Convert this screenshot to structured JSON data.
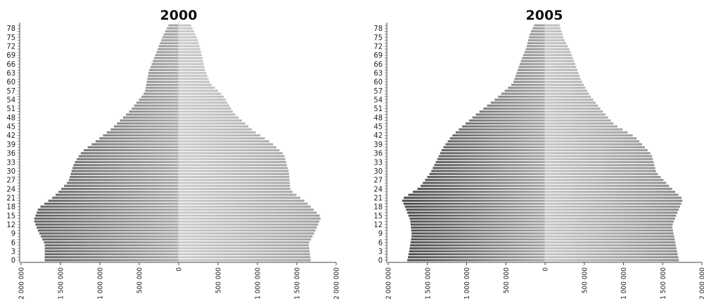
{
  "chart_data": [
    {
      "type": "bar",
      "title": "2000",
      "age_tick_labels": [
        "0",
        "3",
        "6",
        "9",
        "12",
        "15",
        "18",
        "21",
        "24",
        "27",
        "30",
        "33",
        "36",
        "39",
        "42",
        "45",
        "48",
        "51",
        "54",
        "57",
        "60",
        "63",
        "66",
        "69",
        "72",
        "75",
        "78"
      ],
      "x_tick_labels": [
        "2 000 000",
        "1 500 000",
        "1 000 000",
        "500 000",
        "0",
        "500 000",
        "1 000 000",
        "1 500 000",
        "2 000 000"
      ],
      "xlim": [
        -2000000,
        2000000
      ],
      "ages": [
        0,
        80
      ],
      "series": [
        {
          "side": "left",
          "values": [
            [
              0,
              1700000
            ],
            [
              6,
              1700000
            ],
            [
              10,
              1780000
            ],
            [
              14,
              1840000
            ],
            [
              18,
              1780000
            ],
            [
              22,
              1580000
            ],
            [
              27,
              1400000
            ],
            [
              33,
              1330000
            ],
            [
              37,
              1230000
            ],
            [
              41,
              1030000
            ],
            [
              45,
              840000
            ],
            [
              51,
              610000
            ],
            [
              57,
              430000
            ],
            [
              64,
              380000
            ],
            [
              70,
              290000
            ],
            [
              76,
              200000
            ],
            [
              80,
              120000
            ]
          ]
        },
        {
          "side": "right",
          "values": [
            [
              0,
              1680000
            ],
            [
              6,
              1650000
            ],
            [
              10,
              1730000
            ],
            [
              15,
              1810000
            ],
            [
              20,
              1620000
            ],
            [
              24,
              1420000
            ],
            [
              30,
              1400000
            ],
            [
              36,
              1340000
            ],
            [
              40,
              1180000
            ],
            [
              44,
              950000
            ],
            [
              50,
              700000
            ],
            [
              56,
              560000
            ],
            [
              60,
              400000
            ],
            [
              65,
              330000
            ],
            [
              70,
              290000
            ],
            [
              75,
              240000
            ],
            [
              80,
              150000
            ]
          ]
        }
      ]
    },
    {
      "type": "bar",
      "title": "2005",
      "age_tick_labels": [
        "0",
        "3",
        "6",
        "9",
        "12",
        "15",
        "18",
        "21",
        "24",
        "27",
        "30",
        "33",
        "36",
        "39",
        "42",
        "45",
        "48",
        "51",
        "54",
        "57",
        "60",
        "63",
        "66",
        "69",
        "72",
        "75",
        "78"
      ],
      "x_tick_labels": [
        "2 000 000",
        "1 500 000",
        "1 000 000",
        "500 000",
        "0",
        "500 000",
        "1 000 000",
        "1 500 000",
        "2 000 000"
      ],
      "xlim": [
        -2000000,
        2000000
      ],
      "ages": [
        0,
        80
      ],
      "series": [
        {
          "side": "left",
          "values": [
            [
              0,
              1760000
            ],
            [
              4,
              1730000
            ],
            [
              9,
              1700000
            ],
            [
              14,
              1720000
            ],
            [
              18,
              1780000
            ],
            [
              21,
              1830000
            ],
            [
              25,
              1600000
            ],
            [
              30,
              1460000
            ],
            [
              38,
              1310000
            ],
            [
              42,
              1200000
            ],
            [
              45,
              1080000
            ],
            [
              50,
              860000
            ],
            [
              55,
              620000
            ],
            [
              60,
              410000
            ],
            [
              66,
              330000
            ],
            [
              72,
              240000
            ],
            [
              77,
              190000
            ],
            [
              80,
              130000
            ]
          ]
        },
        {
          "side": "right",
          "values": [
            [
              0,
              1710000
            ],
            [
              4,
              1680000
            ],
            [
              8,
              1650000
            ],
            [
              12,
              1620000
            ],
            [
              16,
              1680000
            ],
            [
              21,
              1760000
            ],
            [
              25,
              1600000
            ],
            [
              30,
              1420000
            ],
            [
              36,
              1360000
            ],
            [
              42,
              1150000
            ],
            [
              46,
              890000
            ],
            [
              51,
              720000
            ],
            [
              56,
              570000
            ],
            [
              61,
              460000
            ],
            [
              66,
              390000
            ],
            [
              71,
              320000
            ],
            [
              75,
              240000
            ],
            [
              80,
              180000
            ]
          ]
        }
      ]
    }
  ]
}
